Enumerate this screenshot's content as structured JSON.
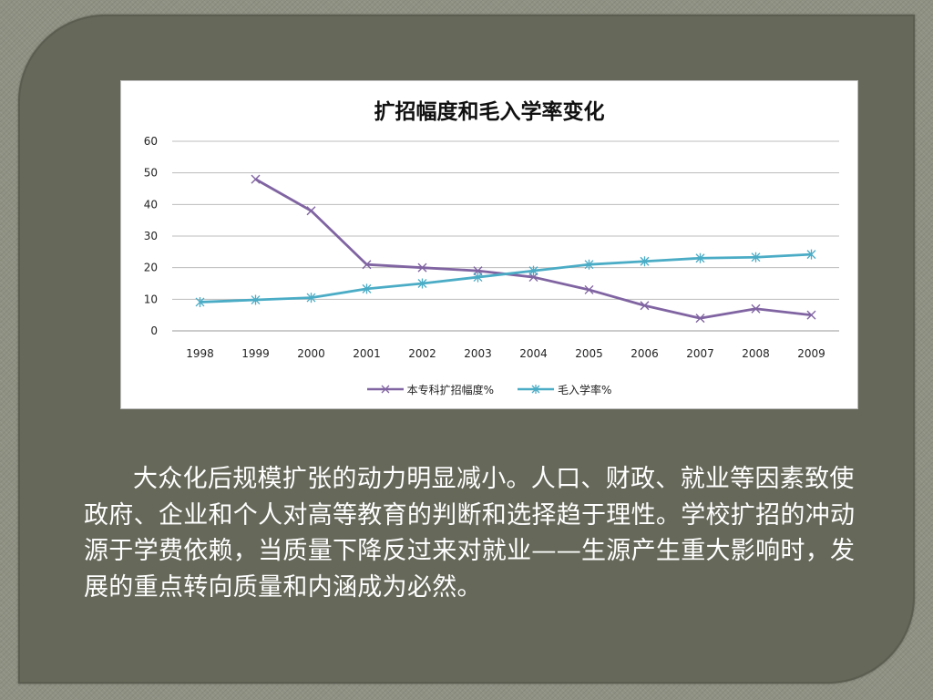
{
  "chart_data": {
    "type": "line",
    "title": "扩招幅度和毛入学率变化",
    "categories": [
      "1998",
      "1999",
      "2000",
      "2001",
      "2002",
      "2003",
      "2004",
      "2005",
      "2006",
      "2007",
      "2008",
      "2009"
    ],
    "ylim": [
      0,
      60
    ],
    "yticks": [
      "0",
      "10",
      "20",
      "30",
      "40",
      "50",
      "60"
    ],
    "grid": true,
    "legend_position": "bottom",
    "series": [
      {
        "name": "本专科扩招幅度%",
        "color": "#8064a2",
        "marker": "x",
        "values": [
          null,
          48,
          38,
          21,
          20,
          19,
          17,
          13,
          8,
          4,
          7,
          5
        ]
      },
      {
        "name": "毛入学率%",
        "color": "#4bacc6",
        "marker": "asterisk",
        "values": [
          9.1,
          9.8,
          10.5,
          13.3,
          15,
          17,
          19,
          21,
          22,
          23,
          23.3,
          24.2
        ]
      }
    ]
  },
  "caption": "大众化后规模扩张的动力明显减小。人口、财政、就业等因素致使政府、企业和个人对高等教育的判断和选择趋于理性。学校扩招的冲动源于学费依赖，当质量下降反过来对就业——生源产生重大影响时，发展的重点转向质量和内涵成为必然。"
}
